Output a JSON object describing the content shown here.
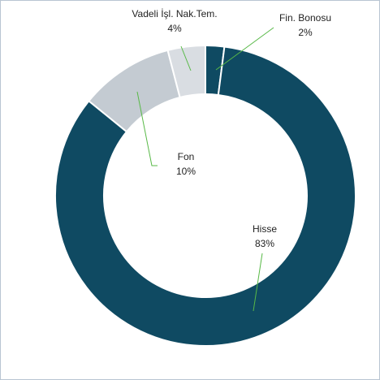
{
  "chart_data": {
    "type": "donut",
    "categories": [
      "Fin. Bonosu",
      "Hisse",
      "Fon",
      "Vadeli İşl.  Nak.Tem."
    ],
    "values": [
      2,
      83,
      10,
      4
    ],
    "value_labels": [
      "2%",
      "83%",
      "10%",
      "4%"
    ],
    "colors": [
      "#0f4a62",
      "#0f4a62",
      "#c4cbd2",
      "#d9dde2"
    ],
    "leader_color": "#58b947"
  }
}
